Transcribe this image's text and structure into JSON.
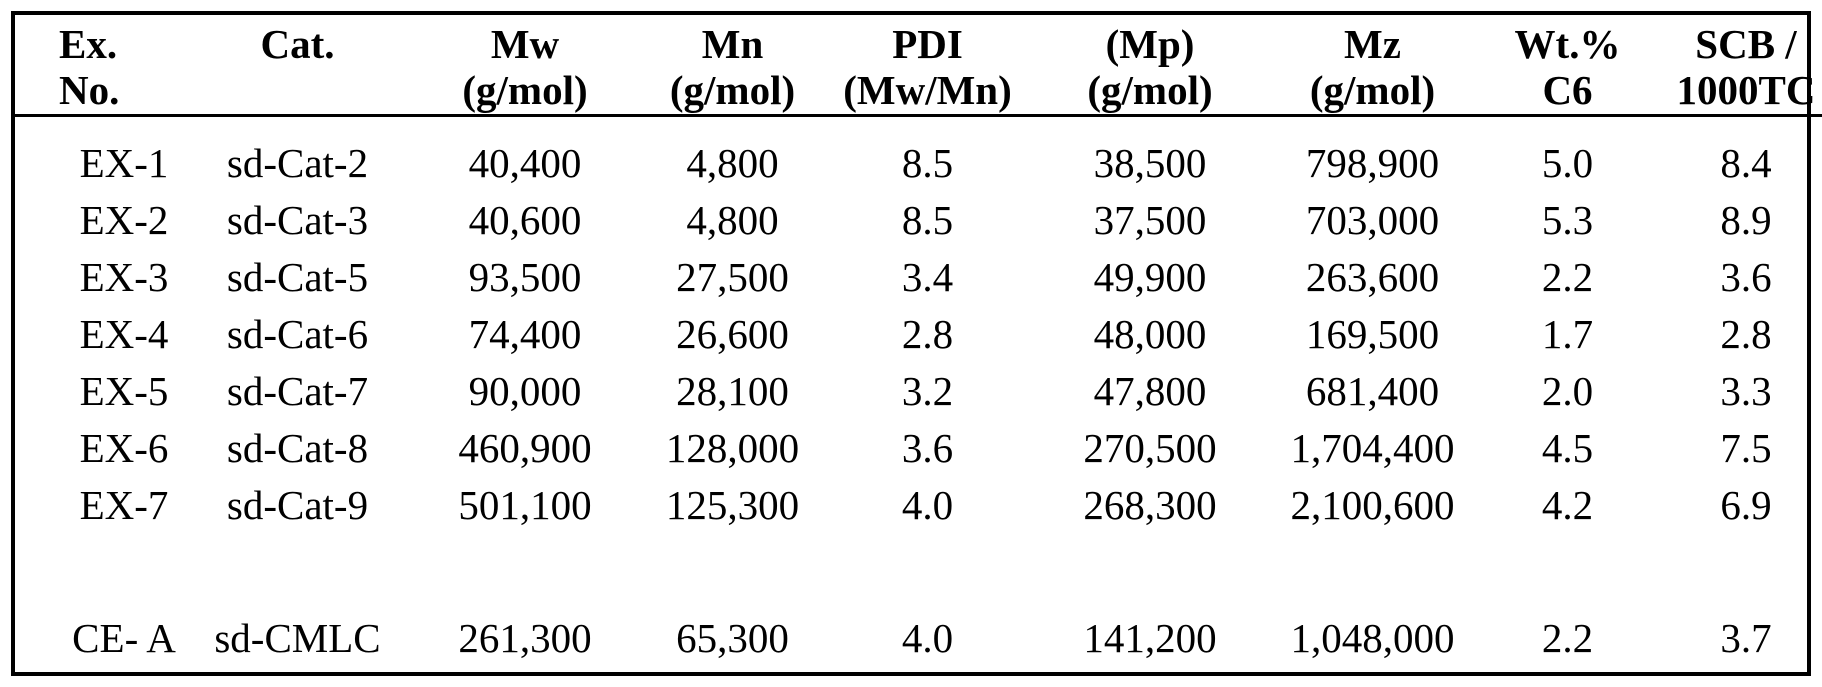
{
  "table": {
    "columns": [
      {
        "line1": "Ex.",
        "line2": "No."
      },
      {
        "line1": "Cat.",
        "line2": ""
      },
      {
        "line1": "Mw",
        "line2": "(g/mol)"
      },
      {
        "line1": "Mn",
        "line2": "(g/mol)"
      },
      {
        "line1": "PDI",
        "line2": "(Mw/Mn)"
      },
      {
        "line1": "(Mp)",
        "line2": "(g/mol)"
      },
      {
        "line1": "Mz",
        "line2": "(g/mol)"
      },
      {
        "line1": "Wt.%",
        "line2": "C6"
      },
      {
        "line1": "SCB /",
        "line2": "1000TC"
      }
    ],
    "example_rows": [
      [
        "EX-1",
        "sd-Cat-2",
        "40,400",
        "4,800",
        "8.5",
        "38,500",
        "798,900",
        "5.0",
        "8.4"
      ],
      [
        "EX-2",
        "sd-Cat-3",
        "40,600",
        "4,800",
        "8.5",
        "37,500",
        "703,000",
        "5.3",
        "8.9"
      ],
      [
        "EX-3",
        "sd-Cat-5",
        "93,500",
        "27,500",
        "3.4",
        "49,900",
        "263,600",
        "2.2",
        "3.6"
      ],
      [
        "EX-4",
        "sd-Cat-6",
        "74,400",
        "26,600",
        "2.8",
        "48,000",
        "169,500",
        "1.7",
        "2.8"
      ],
      [
        "EX-5",
        "sd-Cat-7",
        "90,000",
        "28,100",
        "3.2",
        "47,800",
        "681,400",
        "2.0",
        "3.3"
      ],
      [
        "EX-6",
        "sd-Cat-8",
        "460,900",
        "128,000",
        "3.6",
        "270,500",
        "1,704,400",
        "4.5",
        "7.5"
      ],
      [
        "EX-7",
        "sd-Cat-9",
        "501,100",
        "125,300",
        "4.0",
        "268,300",
        "2,100,600",
        "4.2",
        "6.9"
      ]
    ],
    "comparative_rows": [
      [
        "CE- A",
        "sd-CMLC",
        "261,300",
        "65,300",
        "4.0",
        "141,200",
        "1,048,000",
        "2.2",
        "3.7"
      ]
    ]
  },
  "colors": {
    "border": "#000000",
    "background": "#ffffff",
    "text": "#000000"
  }
}
